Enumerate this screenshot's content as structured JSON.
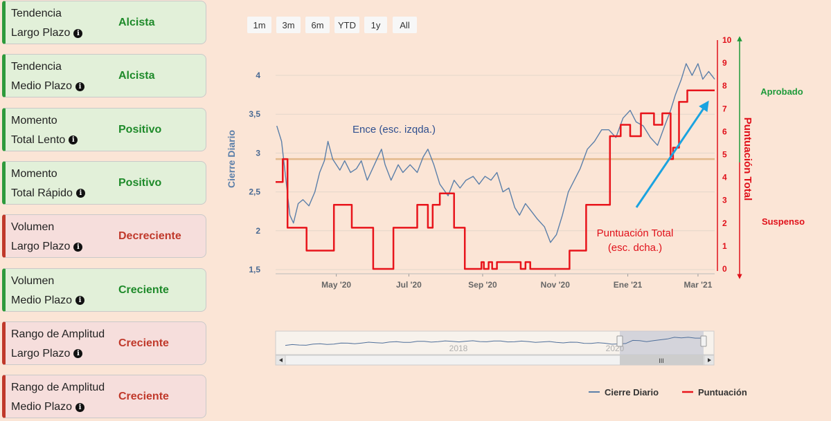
{
  "indicators": [
    {
      "line1": "Tendencia",
      "line2": "Largo Plazo",
      "value": "Alcista",
      "status": "up"
    },
    {
      "line1": "Tendencia",
      "line2": "Medio Plazo",
      "value": "Alcista",
      "status": "up"
    },
    {
      "line1": "Momento",
      "line2": "Total Lento",
      "value": "Positivo",
      "status": "up"
    },
    {
      "line1": "Momento",
      "line2": "Total Rápido",
      "value": "Positivo",
      "status": "up"
    },
    {
      "line1": "Volumen",
      "line2": "Largo Plazo",
      "value": "Decreciente",
      "status": "down"
    },
    {
      "line1": "Volumen",
      "line2": "Medio Plazo",
      "value": "Creciente",
      "status": "up"
    },
    {
      "line1": "Rango de Amplitud",
      "line2": "Largo Plazo",
      "value": "Creciente",
      "status": "down"
    },
    {
      "line1": "Rango de Amplitud",
      "line2": "Medio Plazo",
      "value": "Creciente",
      "status": "down"
    }
  ],
  "range_selector": [
    "1m",
    "3m",
    "6m",
    "YTD",
    "1y",
    "All"
  ],
  "colors": {
    "price_line": "#5b7fa9",
    "score_line": "#e8141b",
    "threshold_line": "#e2b98c",
    "green": "#1e9a3a",
    "red": "#e0101a",
    "arrow": "#1aa3e0"
  },
  "chart_data": {
    "type": "line",
    "x_ticks": [
      "May '20",
      "Jul '20",
      "Sep '20",
      "Nov '20",
      "Ene '21",
      "Mar '21"
    ],
    "x_tick_dates": [
      "2020-05-01",
      "2020-07-01",
      "2020-09-01",
      "2020-11-01",
      "2021-01-01",
      "2021-03-01"
    ],
    "xlim": [
      "2020-03-11",
      "2021-03-15"
    ],
    "y_left": {
      "label": "Cierre Diario",
      "ticks": [
        "1,5",
        "2",
        "2,5",
        "3",
        "3,5",
        "4"
      ],
      "lim": [
        1.45,
        4.3
      ]
    },
    "y_right": {
      "label": "Puntuación Total",
      "ticks": [
        "0",
        "1",
        "2",
        "3",
        "4",
        "5",
        "6",
        "7",
        "8",
        "9",
        "10"
      ],
      "lim": [
        -0.3,
        10
      ]
    },
    "threshold": 4.8,
    "annotations": {
      "price": "Ence (esc. izqda.)",
      "score_line1": "Puntuación Total",
      "score_line2": "(esc. dcha.)",
      "approved": "Aprobado",
      "suspended": "Suspenso"
    },
    "legend": {
      "placement": "bottom-right",
      "price": "Cierre Diario",
      "score": "Puntuación"
    },
    "navigator": {
      "labels": [
        "2018",
        "2020"
      ],
      "scroll_label": "III"
    },
    "series": [
      {
        "name": "Cierre Diario",
        "axis": "left",
        "points": [
          [
            "2020-03-12",
            3.35
          ],
          [
            "2020-03-16",
            3.15
          ],
          [
            "2020-03-19",
            2.75
          ],
          [
            "2020-03-23",
            2.2
          ],
          [
            "2020-03-26",
            2.1
          ],
          [
            "2020-03-30",
            2.35
          ],
          [
            "2020-04-03",
            2.4
          ],
          [
            "2020-04-08",
            2.32
          ],
          [
            "2020-04-13",
            2.5
          ],
          [
            "2020-04-17",
            2.75
          ],
          [
            "2020-04-21",
            2.9
          ],
          [
            "2020-04-24",
            3.15
          ],
          [
            "2020-04-28",
            2.92
          ],
          [
            "2020-05-04",
            2.78
          ],
          [
            "2020-05-08",
            2.9
          ],
          [
            "2020-05-13",
            2.75
          ],
          [
            "2020-05-18",
            2.8
          ],
          [
            "2020-05-22",
            2.9
          ],
          [
            "2020-05-27",
            2.65
          ],
          [
            "2020-06-02",
            2.85
          ],
          [
            "2020-06-08",
            3.05
          ],
          [
            "2020-06-11",
            2.85
          ],
          [
            "2020-06-16",
            2.65
          ],
          [
            "2020-06-22",
            2.85
          ],
          [
            "2020-06-26",
            2.75
          ],
          [
            "2020-07-02",
            2.85
          ],
          [
            "2020-07-08",
            2.75
          ],
          [
            "2020-07-13",
            2.95
          ],
          [
            "2020-07-17",
            3.05
          ],
          [
            "2020-07-22",
            2.85
          ],
          [
            "2020-07-27",
            2.6
          ],
          [
            "2020-08-03",
            2.45
          ],
          [
            "2020-08-08",
            2.65
          ],
          [
            "2020-08-13",
            2.55
          ],
          [
            "2020-08-18",
            2.65
          ],
          [
            "2020-08-24",
            2.7
          ],
          [
            "2020-08-29",
            2.6
          ],
          [
            "2020-09-03",
            2.7
          ],
          [
            "2020-09-08",
            2.65
          ],
          [
            "2020-09-13",
            2.75
          ],
          [
            "2020-09-18",
            2.5
          ],
          [
            "2020-09-23",
            2.55
          ],
          [
            "2020-09-28",
            2.3
          ],
          [
            "2020-10-02",
            2.2
          ],
          [
            "2020-10-07",
            2.35
          ],
          [
            "2020-10-12",
            2.25
          ],
          [
            "2020-10-17",
            2.15
          ],
          [
            "2020-10-23",
            2.05
          ],
          [
            "2020-10-28",
            1.85
          ],
          [
            "2020-11-02",
            1.95
          ],
          [
            "2020-11-07",
            2.2
          ],
          [
            "2020-11-12",
            2.5
          ],
          [
            "2020-11-17",
            2.65
          ],
          [
            "2020-11-22",
            2.8
          ],
          [
            "2020-11-28",
            3.05
          ],
          [
            "2020-12-04",
            3.15
          ],
          [
            "2020-12-10",
            3.3
          ],
          [
            "2020-12-16",
            3.3
          ],
          [
            "2020-12-22",
            3.2
          ],
          [
            "2020-12-28",
            3.45
          ],
          [
            "2021-01-03",
            3.55
          ],
          [
            "2021-01-08",
            3.4
          ],
          [
            "2021-01-14",
            3.35
          ],
          [
            "2021-01-20",
            3.2
          ],
          [
            "2021-01-26",
            3.1
          ],
          [
            "2021-02-01",
            3.35
          ],
          [
            "2021-02-06",
            3.55
          ],
          [
            "2021-02-10",
            3.75
          ],
          [
            "2021-02-15",
            3.95
          ],
          [
            "2021-02-19",
            4.15
          ],
          [
            "2021-02-24",
            4.0
          ],
          [
            "2021-03-01",
            4.15
          ],
          [
            "2021-03-05",
            3.95
          ],
          [
            "2021-03-10",
            4.05
          ],
          [
            "2021-03-15",
            3.95
          ]
        ]
      },
      {
        "name": "Puntuación",
        "axis": "right",
        "step": true,
        "points": [
          [
            "2020-03-11",
            3.8
          ],
          [
            "2020-03-17",
            4.8
          ],
          [
            "2020-03-21",
            1.8
          ],
          [
            "2020-04-06",
            0.8
          ],
          [
            "2020-04-29",
            2.8
          ],
          [
            "2020-05-14",
            1.8
          ],
          [
            "2020-06-01",
            0.0
          ],
          [
            "2020-06-18",
            1.8
          ],
          [
            "2020-07-08",
            2.8
          ],
          [
            "2020-07-17",
            1.8
          ],
          [
            "2020-07-21",
            2.8
          ],
          [
            "2020-07-27",
            3.3
          ],
          [
            "2020-08-08",
            1.8
          ],
          [
            "2020-08-17",
            0.0
          ],
          [
            "2020-08-31",
            0.3
          ],
          [
            "2020-09-02",
            0.0
          ],
          [
            "2020-09-06",
            0.3
          ],
          [
            "2020-09-09",
            0.0
          ],
          [
            "2020-09-13",
            0.3
          ],
          [
            "2020-10-03",
            0.0
          ],
          [
            "2020-10-07",
            0.3
          ],
          [
            "2020-10-11",
            0.0
          ],
          [
            "2020-11-13",
            0.8
          ],
          [
            "2020-11-27",
            2.8
          ],
          [
            "2020-12-17",
            5.8
          ],
          [
            "2020-12-26",
            6.3
          ],
          [
            "2021-01-03",
            5.8
          ],
          [
            "2021-01-12",
            6.8
          ],
          [
            "2021-01-23",
            6.3
          ],
          [
            "2021-01-30",
            6.8
          ],
          [
            "2021-02-06",
            4.8
          ],
          [
            "2021-02-08",
            5.3
          ],
          [
            "2021-02-13",
            7.3
          ],
          [
            "2021-02-20",
            7.8
          ],
          [
            "2021-02-24",
            7.8
          ],
          [
            "2021-03-15",
            7.8
          ]
        ]
      }
    ]
  }
}
